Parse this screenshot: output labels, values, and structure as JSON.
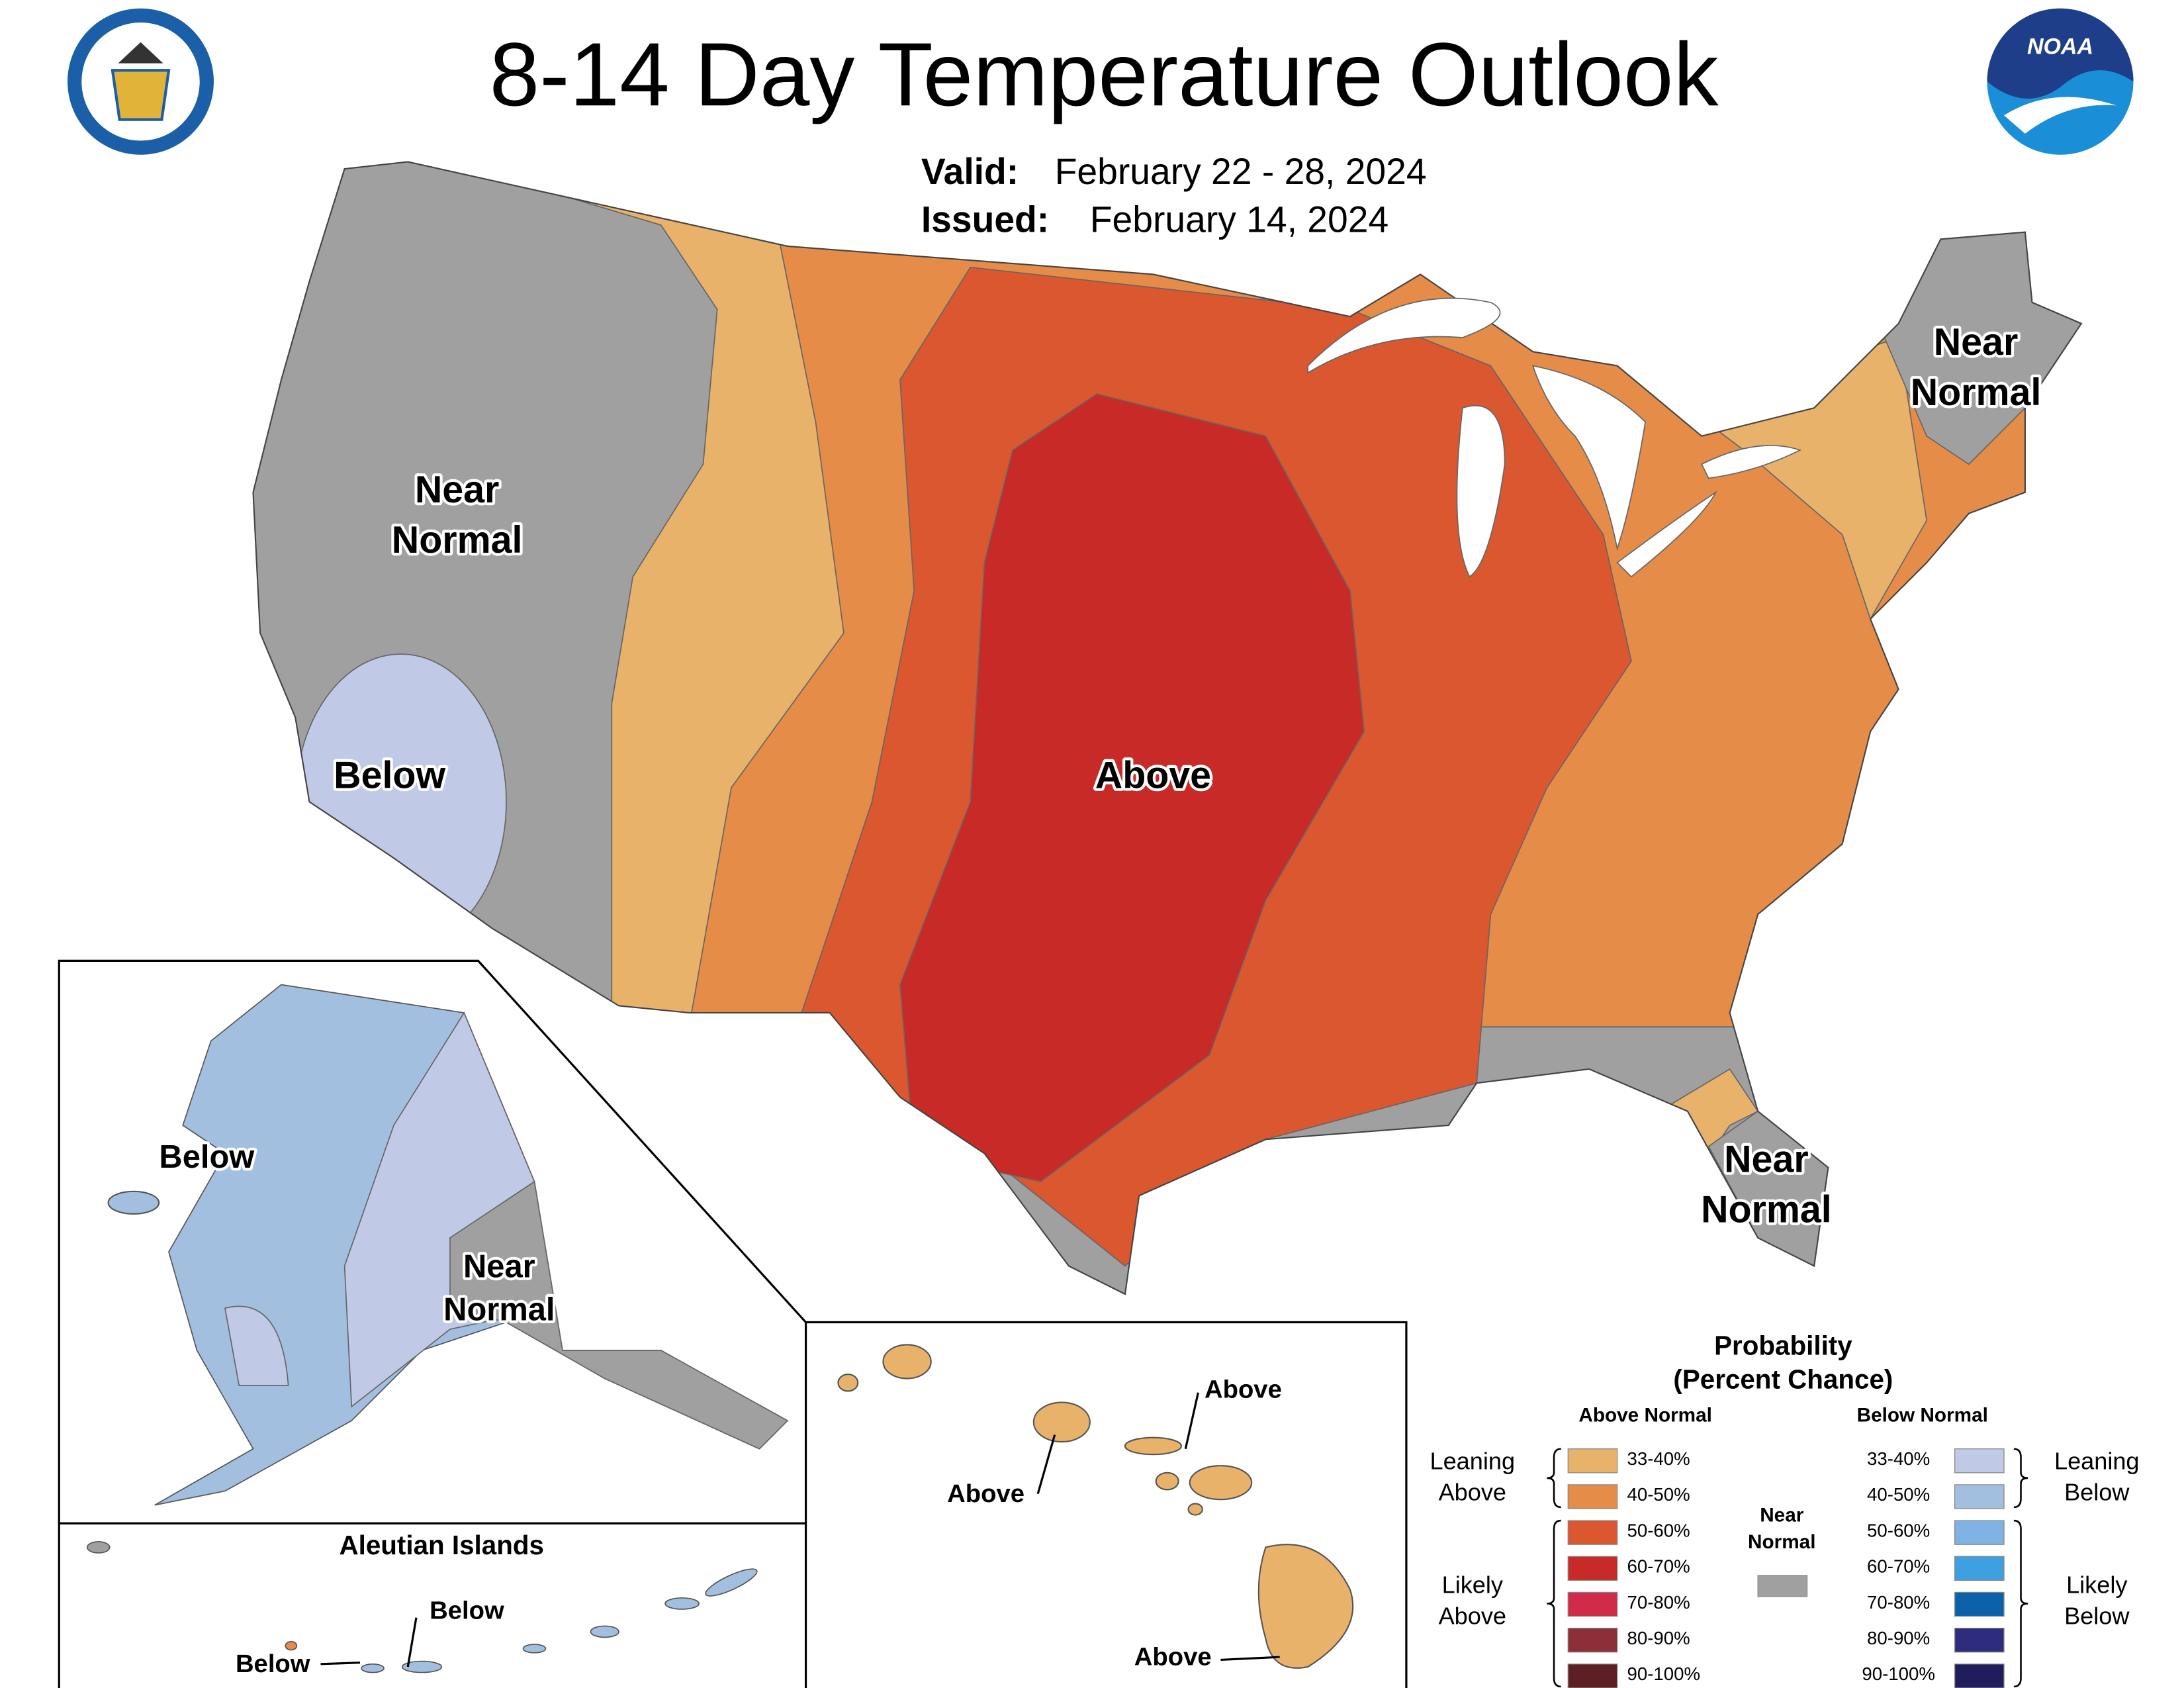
{
  "header": {
    "title": "8-14 Day Temperature Outlook",
    "valid_label": "Valid:",
    "valid": "February 22 - 28, 2024",
    "issued_label": "Issued:",
    "issued": "February 14, 2024",
    "noaa_logo": "NOAA"
  },
  "map_labels": [
    {
      "lines": [
        "Near",
        "Normal"
      ]
    },
    {
      "lines": [
        "Below"
      ]
    },
    {
      "lines": [
        "Above"
      ]
    },
    {
      "lines": [
        "Near",
        "Normal"
      ]
    },
    {
      "lines": [
        "Near",
        "Normal"
      ]
    },
    {
      "lines": [
        "Below"
      ]
    },
    {
      "lines": [
        "Near",
        "Normal"
      ]
    },
    {
      "lines": [
        "Below"
      ]
    },
    {
      "lines": [
        "Below"
      ]
    },
    {
      "lines": [
        "Above"
      ]
    },
    {
      "lines": [
        "Above"
      ]
    },
    {
      "lines": [
        "Above"
      ]
    }
  ],
  "insets": {
    "aleutian_title": "Aleutian Islands"
  },
  "legend": {
    "title": [
      "Probability",
      "(Percent Chance)"
    ],
    "above_header": "Above Normal",
    "below_header": "Below Normal",
    "near_label": [
      "Near",
      "Normal"
    ],
    "near_color": "#a0a0a0",
    "above": [
      {
        "label": "33-40%",
        "color": "#e8b26a"
      },
      {
        "label": "40-50%",
        "color": "#e58c49"
      },
      {
        "label": "50-60%",
        "color": "#da572f"
      },
      {
        "label": "60-70%",
        "color": "#c72a27"
      },
      {
        "label": "70-80%",
        "color": "#d12b4a"
      },
      {
        "label": "80-90%",
        "color": "#8c2f38"
      },
      {
        "label": "90-100%",
        "color": "#5c1f24"
      }
    ],
    "below": [
      {
        "label": "33-40%",
        "color": "#c0cae6"
      },
      {
        "label": "40-50%",
        "color": "#a3bfe0"
      },
      {
        "label": "50-60%",
        "color": "#7fb3e3"
      },
      {
        "label": "60-70%",
        "color": "#3da0e0"
      },
      {
        "label": "70-80%",
        "color": "#0b62a9"
      },
      {
        "label": "80-90%",
        "color": "#2d2c7f"
      },
      {
        "label": "90-100%",
        "color": "#1f1d5c"
      }
    ],
    "brackets": {
      "leaning_above": [
        "Leaning",
        "Above"
      ],
      "likely_above": [
        "Likely",
        "Above"
      ],
      "leaning_below": [
        "Leaning",
        "Below"
      ],
      "likely_below": [
        "Likely",
        "Below"
      ]
    }
  }
}
